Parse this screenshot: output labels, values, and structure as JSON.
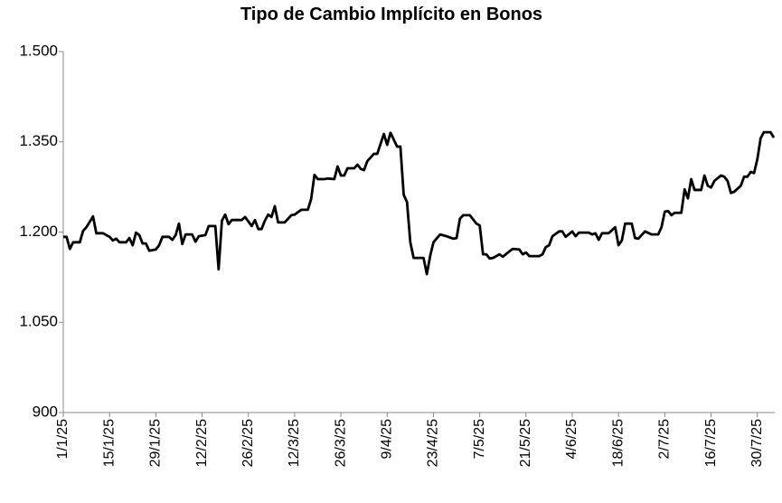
{
  "chart_data": {
    "type": "line",
    "title": "Tipo de Cambio Implícito en Bonos",
    "x": [
      "1/1/25",
      "2/1/25",
      "3/1/25",
      "4/1/25",
      "6/1/25",
      "7/1/25",
      "8/1/25",
      "10/1/25",
      "11/1/25",
      "13/1/25",
      "15/1/25",
      "16/1/25",
      "17/1/25",
      "18/1/25",
      "20/1/25",
      "21/1/25",
      "22/1/25",
      "23/1/25",
      "24/1/25",
      "25/1/25",
      "26/1/25",
      "27/1/25",
      "29/1/25",
      "30/1/25",
      "31/1/25",
      "2/2/25",
      "3/2/25",
      "4/2/25",
      "5/2/25",
      "6/2/25",
      "7/2/25",
      "9/2/25",
      "10/2/25",
      "11/2/25",
      "13/2/25",
      "14/2/25",
      "16/2/25",
      "17/2/25",
      "18/2/25",
      "19/2/25",
      "20/2/25",
      "21/2/25",
      "24/2/25",
      "25/2/25",
      "27/2/25",
      "28/2/25",
      "1/3/25",
      "2/3/25",
      "3/3/25",
      "4/3/25",
      "5/3/25",
      "6/3/25",
      "7/3/25",
      "9/3/25",
      "11/3/25",
      "12/3/25",
      "14/3/25",
      "16/3/25",
      "17/3/25",
      "18/3/25",
      "19/3/25",
      "21/3/25",
      "22/3/25",
      "24/3/25",
      "25/3/25",
      "26/3/25",
      "27/3/25",
      "28/3/25",
      "30/3/25",
      "31/3/25",
      "1/4/25",
      "2/4/25",
      "3/4/25",
      "5/4/25",
      "6/4/25",
      "8/4/25",
      "9/4/25",
      "10/4/25",
      "12/4/25",
      "13/4/25",
      "14/4/25",
      "15/4/25",
      "16/4/25",
      "17/4/25",
      "20/4/25",
      "21/4/25",
      "22/4/25",
      "23/4/25",
      "25/4/25",
      "27/4/25",
      "29/4/25",
      "30/4/25",
      "1/5/25",
      "2/5/25",
      "4/5/25",
      "6/5/25",
      "7/5/25",
      "8/5/25",
      "9/5/25",
      "10/5/25",
      "11/5/25",
      "12/5/25",
      "13/5/25",
      "14/5/25",
      "16/5/25",
      "17/5/25",
      "19/5/25",
      "20/5/25",
      "21/5/25",
      "22/5/25",
      "25/5/25",
      "26/5/25",
      "27/5/25",
      "28/5/25",
      "29/5/25",
      "31/5/25",
      "1/6/25",
      "2/6/25",
      "4/6/25",
      "5/6/25",
      "6/6/25",
      "9/6/25",
      "10/6/25",
      "11/6/25",
      "12/6/25",
      "13/6/25",
      "15/6/25",
      "17/6/25",
      "18/6/25",
      "19/6/25",
      "20/6/25",
      "22/6/25",
      "23/6/25",
      "24/6/25",
      "26/6/25",
      "28/6/25",
      "30/6/25",
      "1/7/25",
      "2/7/25",
      "3/7/25",
      "4/7/25",
      "5/7/25",
      "7/7/25",
      "8/7/25",
      "9/7/25",
      "10/7/25",
      "11/7/25",
      "13/7/25",
      "14/7/25",
      "15/7/25",
      "16/7/25",
      "17/7/25",
      "19/7/25",
      "20/7/25",
      "21/7/25",
      "22/7/25",
      "23/7/25",
      "25/7/25",
      "26/7/25",
      "27/7/25",
      "28/7/25",
      "29/7/25",
      "30/7/25",
      "31/7/25",
      "1/8/25",
      "3/8/25",
      "4/8/25"
    ],
    "values": [
      1192,
      1192,
      1172,
      1183,
      1183,
      1202,
      1208,
      1226,
      1198,
      1198,
      1192,
      1186,
      1189,
      1183,
      1183,
      1190,
      1178,
      1199,
      1195,
      1181,
      1181,
      1169,
      1171,
      1178,
      1192,
      1192,
      1187,
      1195,
      1214,
      1180,
      1196,
      1196,
      1184,
      1193,
      1195,
      1210,
      1210,
      1138,
      1219,
      1229,
      1213,
      1220,
      1220,
      1225,
      1210,
      1220,
      1205,
      1205,
      1219,
      1229,
      1225,
      1243,
      1216,
      1216,
      1228,
      1229,
      1237,
      1237,
      1255,
      1295,
      1288,
      1288,
      1289,
      1288,
      1309,
      1294,
      1294,
      1306,
      1306,
      1312,
      1305,
      1303,
      1318,
      1330,
      1330,
      1363,
      1345,
      1365,
      1342,
      1342,
      1262,
      1250,
      1183,
      1157,
      1157,
      1130,
      1160,
      1183,
      1196,
      1193,
      1189,
      1190,
      1222,
      1228,
      1228,
      1214,
      1211,
      1163,
      1163,
      1156,
      1157,
      1160,
      1163,
      1159,
      1168,
      1172,
      1171,
      1163,
      1166,
      1160,
      1160,
      1163,
      1175,
      1178,
      1193,
      1201,
      1201,
      1192,
      1201,
      1193,
      1199,
      1199,
      1196,
      1198,
      1187,
      1198,
      1198,
      1208,
      1178,
      1186,
      1214,
      1214,
      1190,
      1189,
      1201,
      1196,
      1196,
      1208,
      1234,
      1235,
      1228,
      1232,
      1232,
      1271,
      1256,
      1288,
      1270,
      1270,
      1294,
      1277,
      1274,
      1285,
      1294,
      1292,
      1285,
      1265,
      1267,
      1277,
      1292,
      1292,
      1300,
      1298,
      1321,
      1356,
      1366,
      1366,
      1357
    ],
    "color": "#000000",
    "xlim": [
      "1/1/25",
      "4/8/25"
    ],
    "xticks": [
      "1/1/25",
      "15/1/25",
      "29/1/25",
      "12/2/25",
      "26/2/25",
      "12/3/25",
      "26/3/25",
      "9/4/25",
      "23/4/25",
      "7/5/25",
      "21/5/25",
      "4/6/25",
      "18/6/25",
      "2/7/25",
      "16/7/25",
      "30/7/25"
    ],
    "ylim": [
      900,
      1500
    ],
    "yticks": [
      900,
      {
        "value": 1050,
        "label": "1.050"
      },
      {
        "value": 1200,
        "label": "1.200"
      },
      {
        "value": 1350,
        "label": "1.350"
      },
      {
        "value": 1500,
        "label": "1.500"
      }
    ],
    "grid": false
  }
}
